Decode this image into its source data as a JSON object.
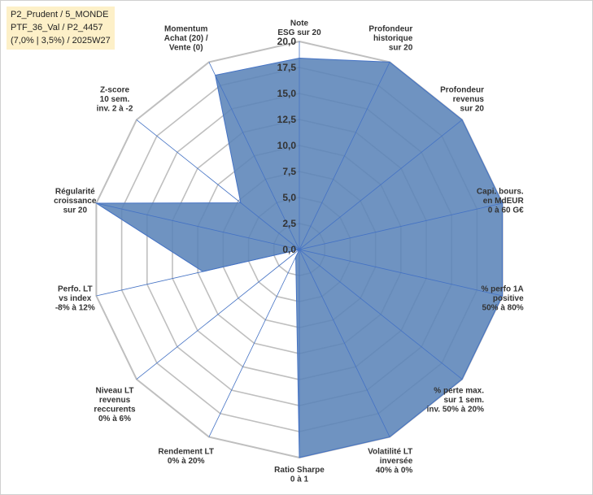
{
  "info": {
    "line1": "P2_Prudent / 5_MONDE",
    "line2": "PTF_36_Val / P2_4457",
    "line3": "(7,0% | 3,5%) / 2025W27"
  },
  "chart_data": {
    "type": "radar",
    "rmin": 0,
    "rmax": 20,
    "ticks": [
      "0,0",
      "2,5",
      "5,0",
      "7,5",
      "10,0",
      "12,5",
      "15,0",
      "17,5",
      "20,0"
    ],
    "tick_values": [
      0,
      2.5,
      5,
      7.5,
      10,
      12.5,
      15,
      17.5,
      20
    ],
    "colors": {
      "fill": "#5b84b8",
      "stroke": "#4472c4",
      "grid": "#bfbfbf",
      "spoke": "#4472c4"
    },
    "categories": [
      [
        "Note",
        "ESG sur 20"
      ],
      [
        "Profondeur",
        "historique",
        "sur 20"
      ],
      [
        "Profondeur",
        "revenus",
        "sur 20"
      ],
      [
        "Capi. bours.",
        "en MdEUR",
        "0 à 60 G€"
      ],
      [
        "% perfo 1A",
        "positive",
        "50% à 80%"
      ],
      [
        "% perte max.",
        "sur 1 sem.",
        "inv. 50% à 20%"
      ],
      [
        "Volatilité LT",
        "inversée",
        "40% à 0%"
      ],
      [
        "Ratio Sharpe",
        "0 à 1"
      ],
      [
        "Rendement LT",
        "0% à 20%"
      ],
      [
        "Niveau LT",
        "revenus",
        "reccurents",
        "0% à 6%"
      ],
      [
        "Perfo. LT",
        "vs index",
        "-8% à 12%"
      ],
      [
        "Régularité",
        "croissance",
        "sur 20"
      ],
      [
        "Z-score",
        "10 sem.",
        "inv. 2 à -2"
      ],
      [
        "Momentum",
        "Achat (20) /",
        "Vente (0)"
      ]
    ],
    "values": [
      18.4,
      20,
      20,
      20,
      20,
      20,
      20,
      20,
      0.8,
      0,
      9.5,
      20,
      7.2,
      18.6
    ]
  }
}
